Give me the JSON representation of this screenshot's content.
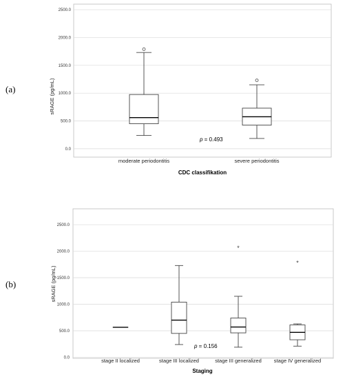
{
  "figure": {
    "panel_labels": [
      "(a)",
      "(b)"
    ]
  },
  "chart_data": [
    {
      "type": "box",
      "panel": "(a)",
      "xlabel": "CDC classifikation",
      "ylabel": "sRAGE (pg/mL)",
      "ylim": [
        -150,
        2600
      ],
      "yticks": [
        0,
        500,
        1000,
        1500,
        2000,
        2500
      ],
      "ytick_labels": [
        "0.0",
        "500.0",
        "1000.0",
        "1500.0",
        "2000.0",
        "2500.0"
      ],
      "grid": true,
      "annotation": {
        "p_letter": "p",
        "text": " = 0.493"
      },
      "categories": [
        "moderate periodontitis",
        "severe periodontitis"
      ],
      "boxes": [
        {
          "min": 240,
          "q1": 450,
          "median": 560,
          "q3": 975,
          "max": 1730,
          "outliers": [
            1790
          ],
          "extremes": []
        },
        {
          "min": 185,
          "q1": 425,
          "median": 575,
          "q3": 730,
          "max": 1150,
          "outliers": [
            1230
          ],
          "extremes": []
        }
      ]
    },
    {
      "type": "box",
      "panel": "(b)",
      "xlabel": "Staging",
      "ylabel": "sRAGE (pg/mL)",
      "ylim": [
        -20,
        2800
      ],
      "yticks": [
        0,
        500,
        1000,
        1500,
        2000,
        2500
      ],
      "ytick_labels": [
        "0.0",
        "500.0",
        "1000.0",
        "1500.0",
        "2000.0",
        "2500.0"
      ],
      "grid": true,
      "annotation": {
        "p_letter": "p",
        "text": " = 0.156"
      },
      "categories": [
        "stage II localized",
        "stage III  localized",
        "stage III generalized",
        "stage IV generalized"
      ],
      "boxes": [
        {
          "min": 565,
          "q1": 565,
          "median": 565,
          "q3": 565,
          "max": 565,
          "outliers": [],
          "extremes": []
        },
        {
          "min": 240,
          "q1": 450,
          "median": 700,
          "q3": 1040,
          "max": 1730,
          "outliers": [],
          "extremes": []
        },
        {
          "min": 190,
          "q1": 460,
          "median": 570,
          "q3": 740,
          "max": 1150,
          "outliers": [],
          "extremes": [
            2070
          ]
        },
        {
          "min": 210,
          "q1": 330,
          "median": 470,
          "q3": 610,
          "max": 630,
          "outliers": [],
          "extremes": [
            1790
          ]
        }
      ]
    }
  ]
}
